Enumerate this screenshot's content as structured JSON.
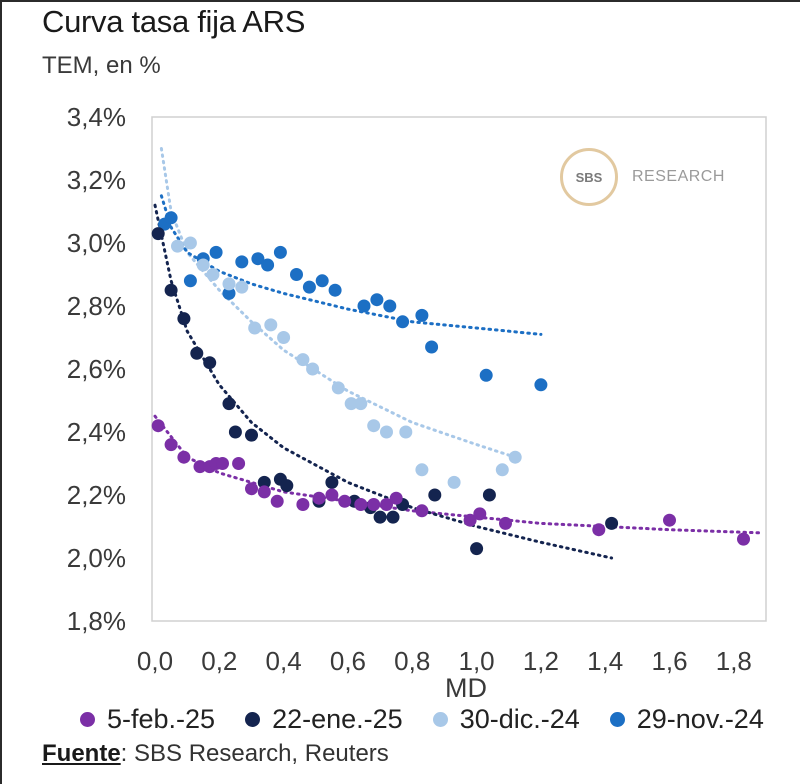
{
  "title": "Curva tasa fija ARS",
  "subtitle": "TEM, en %",
  "logo": {
    "mark": "SBS",
    "text": "RESEARCH"
  },
  "source": {
    "label": "Fuente",
    "text": ": SBS Research, Reuters"
  },
  "colors": {
    "s1": "#7b2fa6",
    "s2": "#14244f",
    "s3": "#a8c8e8",
    "s4": "#1c6fc4",
    "grid": "#d0d0d0",
    "axis_text": "#3a3a3a"
  },
  "chart_data": {
    "type": "scatter",
    "title": "Curva tasa fija ARS",
    "ylabel": "TEM, en %",
    "xlabel": "MD",
    "xlim": [
      0,
      1.9
    ],
    "ylim": [
      1.8,
      3.4
    ],
    "x_ticks": [
      0.0,
      0.2,
      0.4,
      0.6,
      0.8,
      1.0,
      1.2,
      1.4,
      1.6,
      1.8
    ],
    "x_tick_labels": [
      "0,0",
      "0,2",
      "0,4",
      "0,6",
      "0,8",
      "1,0",
      "1,2",
      "1,4",
      "1,6",
      "1,8"
    ],
    "y_ticks": [
      1.8,
      2.0,
      2.2,
      2.4,
      2.6,
      2.8,
      3.0,
      3.2,
      3.4
    ],
    "y_tick_labels": [
      "1,8%",
      "2,0%",
      "2,2%",
      "2,4%",
      "2,6%",
      "2,8%",
      "3,0%",
      "3,2%",
      "3,4%"
    ],
    "legend_position": "bottom",
    "series": [
      {
        "name": "5-feb.-25",
        "points": [
          [
            0.01,
            2.42
          ],
          [
            0.05,
            2.36
          ],
          [
            0.09,
            2.32
          ],
          [
            0.14,
            2.29
          ],
          [
            0.17,
            2.29
          ],
          [
            0.19,
            2.3
          ],
          [
            0.21,
            2.3
          ],
          [
            0.26,
            2.3
          ],
          [
            0.3,
            2.22
          ],
          [
            0.34,
            2.21
          ],
          [
            0.38,
            2.18
          ],
          [
            0.46,
            2.17
          ],
          [
            0.51,
            2.19
          ],
          [
            0.55,
            2.2
          ],
          [
            0.59,
            2.18
          ],
          [
            0.64,
            2.17
          ],
          [
            0.68,
            2.17
          ],
          [
            0.72,
            2.17
          ],
          [
            0.75,
            2.19
          ],
          [
            0.83,
            2.15
          ],
          [
            0.98,
            2.12
          ],
          [
            1.01,
            2.14
          ],
          [
            1.09,
            2.11
          ],
          [
            1.38,
            2.09
          ],
          [
            1.6,
            2.12
          ],
          [
            1.83,
            2.06
          ]
        ],
        "trend": [
          [
            0.0,
            2.45
          ],
          [
            0.1,
            2.32
          ],
          [
            0.2,
            2.27
          ],
          [
            0.4,
            2.21
          ],
          [
            0.6,
            2.18
          ],
          [
            0.8,
            2.15
          ],
          [
            1.0,
            2.13
          ],
          [
            1.2,
            2.11
          ],
          [
            1.4,
            2.1
          ],
          [
            1.6,
            2.09
          ],
          [
            1.88,
            2.08
          ]
        ]
      },
      {
        "name": "22-ene.-25",
        "points": [
          [
            0.01,
            3.03
          ],
          [
            0.05,
            2.85
          ],
          [
            0.09,
            2.76
          ],
          [
            0.13,
            2.65
          ],
          [
            0.17,
            2.62
          ],
          [
            0.23,
            2.49
          ],
          [
            0.25,
            2.4
          ],
          [
            0.3,
            2.39
          ],
          [
            0.34,
            2.24
          ],
          [
            0.39,
            2.25
          ],
          [
            0.41,
            2.23
          ],
          [
            0.51,
            2.18
          ],
          [
            0.55,
            2.24
          ],
          [
            0.62,
            2.18
          ],
          [
            0.67,
            2.16
          ],
          [
            0.7,
            2.13
          ],
          [
            0.74,
            2.13
          ],
          [
            0.77,
            2.17
          ],
          [
            0.87,
            2.2
          ],
          [
            1.0,
            2.03
          ],
          [
            1.04,
            2.2
          ],
          [
            1.42,
            2.11
          ]
        ],
        "trend": [
          [
            0.0,
            3.12
          ],
          [
            0.05,
            2.88
          ],
          [
            0.1,
            2.72
          ],
          [
            0.2,
            2.55
          ],
          [
            0.3,
            2.43
          ],
          [
            0.4,
            2.35
          ],
          [
            0.6,
            2.24
          ],
          [
            0.8,
            2.16
          ],
          [
            1.0,
            2.1
          ],
          [
            1.2,
            2.05
          ],
          [
            1.42,
            2.0
          ]
        ]
      },
      {
        "name": "30-dic.-24",
        "points": [
          [
            0.07,
            2.99
          ],
          [
            0.11,
            3.0
          ],
          [
            0.15,
            2.93
          ],
          [
            0.18,
            2.9
          ],
          [
            0.23,
            2.87
          ],
          [
            0.27,
            2.86
          ],
          [
            0.31,
            2.73
          ],
          [
            0.36,
            2.74
          ],
          [
            0.4,
            2.7
          ],
          [
            0.46,
            2.63
          ],
          [
            0.49,
            2.6
          ],
          [
            0.57,
            2.54
          ],
          [
            0.61,
            2.49
          ],
          [
            0.64,
            2.49
          ],
          [
            0.68,
            2.42
          ],
          [
            0.72,
            2.4
          ],
          [
            0.78,
            2.4
          ],
          [
            0.83,
            2.28
          ],
          [
            0.93,
            2.24
          ],
          [
            1.08,
            2.28
          ],
          [
            1.12,
            2.32
          ]
        ],
        "trend": [
          [
            0.02,
            3.3
          ],
          [
            0.05,
            3.1
          ],
          [
            0.1,
            2.97
          ],
          [
            0.2,
            2.85
          ],
          [
            0.3,
            2.75
          ],
          [
            0.4,
            2.66
          ],
          [
            0.6,
            2.53
          ],
          [
            0.8,
            2.43
          ],
          [
            1.0,
            2.36
          ],
          [
            1.12,
            2.32
          ]
        ]
      },
      {
        "name": "29-nov.-24",
        "points": [
          [
            0.03,
            3.06
          ],
          [
            0.05,
            3.08
          ],
          [
            0.11,
            2.88
          ],
          [
            0.15,
            2.95
          ],
          [
            0.19,
            2.97
          ],
          [
            0.23,
            2.84
          ],
          [
            0.27,
            2.94
          ],
          [
            0.32,
            2.95
          ],
          [
            0.35,
            2.93
          ],
          [
            0.39,
            2.97
          ],
          [
            0.44,
            2.9
          ],
          [
            0.48,
            2.86
          ],
          [
            0.52,
            2.88
          ],
          [
            0.56,
            2.85
          ],
          [
            0.65,
            2.8
          ],
          [
            0.69,
            2.82
          ],
          [
            0.73,
            2.8
          ],
          [
            0.77,
            2.75
          ],
          [
            0.83,
            2.77
          ],
          [
            0.86,
            2.67
          ],
          [
            1.03,
            2.58
          ],
          [
            1.2,
            2.55
          ]
        ],
        "trend": [
          [
            0.02,
            3.15
          ],
          [
            0.05,
            3.05
          ],
          [
            0.1,
            2.97
          ],
          [
            0.2,
            2.91
          ],
          [
            0.3,
            2.87
          ],
          [
            0.4,
            2.84
          ],
          [
            0.6,
            2.79
          ],
          [
            0.8,
            2.75
          ],
          [
            1.0,
            2.73
          ],
          [
            1.2,
            2.71
          ]
        ]
      }
    ]
  }
}
